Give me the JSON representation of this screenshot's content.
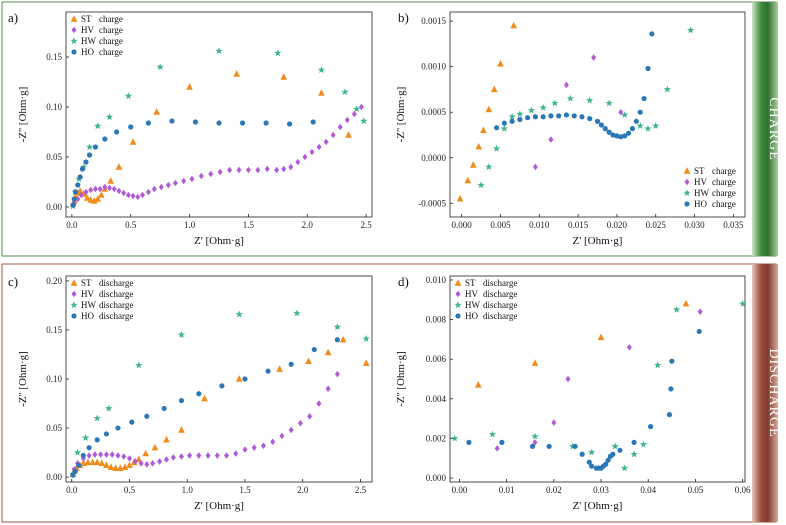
{
  "colors": {
    "ST": "#f28a1c",
    "HV": "#b25ad6",
    "HW": "#3fb48f",
    "HO": "#2b78b8",
    "charge_band": "#3f8a3a",
    "discharge_band": "#9a4c3c"
  },
  "band_labels": {
    "charge": "CHARGE",
    "discharge": "DISCHARGE"
  },
  "chart_data": [
    {
      "panel": "a)",
      "type": "scatter",
      "xlabel": "Z' [Ohm·g]",
      "ylabel": "-Z'' [Ohm·g]",
      "xlim": [
        -0.05,
        2.55
      ],
      "ylim": [
        -0.01,
        0.195
      ],
      "xticks": [
        0.0,
        0.5,
        1.0,
        1.5,
        2.0,
        2.5
      ],
      "xtick_labels": [
        "0.0",
        "0.5",
        "1.0",
        "1.5",
        "2.0",
        "2.5"
      ],
      "yticks": [
        0.0,
        0.05,
        0.1,
        0.15
      ],
      "ytick_labels": [
        "0.00",
        "0.05",
        "0.10",
        "0.15"
      ],
      "legend_position": "top-left",
      "series": [
        {
          "name": "ST charge",
          "label": "ST",
          "suffix": "charge",
          "key": "ST",
          "marker": "triangle",
          "x": [
            0.01,
            0.02,
            0.03,
            0.05,
            0.07,
            0.1,
            0.13,
            0.16,
            0.19,
            0.22,
            0.25,
            0.28,
            0.33,
            0.4,
            0.52,
            0.72,
            1.0,
            1.4,
            1.8,
            2.12,
            2.35
          ],
          "y": [
            0.003,
            0.006,
            0.01,
            0.014,
            0.016,
            0.013,
            0.009,
            0.007,
            0.006,
            0.008,
            0.012,
            0.018,
            0.026,
            0.04,
            0.065,
            0.095,
            0.12,
            0.133,
            0.13,
            0.114,
            0.072
          ]
        },
        {
          "name": "HV charge",
          "label": "HV",
          "suffix": "charge",
          "key": "HV",
          "marker": "diamond",
          "x": [
            0.02,
            0.05,
            0.08,
            0.12,
            0.16,
            0.2,
            0.24,
            0.28,
            0.32,
            0.36,
            0.4,
            0.44,
            0.48,
            0.52,
            0.56,
            0.6,
            0.65,
            0.7,
            0.76,
            0.82,
            0.88,
            0.95,
            1.02,
            1.1,
            1.18,
            1.26,
            1.34,
            1.42,
            1.5,
            1.58,
            1.66,
            1.74,
            1.8,
            1.86,
            1.92,
            1.98,
            2.04,
            2.1,
            2.16,
            2.22,
            2.28,
            2.34,
            2.4,
            2.46
          ],
          "y": [
            0.004,
            0.008,
            0.012,
            0.015,
            0.017,
            0.018,
            0.018,
            0.02,
            0.019,
            0.018,
            0.016,
            0.014,
            0.012,
            0.011,
            0.01,
            0.012,
            0.015,
            0.018,
            0.02,
            0.022,
            0.024,
            0.026,
            0.028,
            0.031,
            0.033,
            0.035,
            0.037,
            0.037,
            0.037,
            0.037,
            0.038,
            0.037,
            0.038,
            0.04,
            0.045,
            0.05,
            0.055,
            0.06,
            0.065,
            0.072,
            0.08,
            0.087,
            0.093,
            0.1
          ]
        },
        {
          "name": "HW charge",
          "label": "HW",
          "suffix": "charge",
          "key": "HW",
          "marker": "star",
          "x": [
            0.01,
            0.03,
            0.06,
            0.1,
            0.15,
            0.22,
            0.32,
            0.48,
            0.75,
            1.25,
            1.75,
            2.12,
            2.32,
            2.42,
            2.48
          ],
          "y": [
            0.001,
            0.015,
            0.028,
            0.04,
            0.06,
            0.081,
            0.09,
            0.111,
            0.14,
            0.156,
            0.154,
            0.137,
            0.115,
            0.098,
            0.086
          ]
        },
        {
          "name": "HO charge",
          "label": "HO",
          "suffix": "charge",
          "key": "HO",
          "marker": "circle",
          "x": [
            0.01,
            0.02,
            0.03,
            0.05,
            0.07,
            0.09,
            0.12,
            0.15,
            0.2,
            0.28,
            0.38,
            0.5,
            0.65,
            0.85,
            1.05,
            1.25,
            1.45,
            1.65,
            1.85,
            2.05
          ],
          "y": [
            0.002,
            0.008,
            0.015,
            0.022,
            0.03,
            0.038,
            0.045,
            0.052,
            0.06,
            0.068,
            0.075,
            0.08,
            0.084,
            0.086,
            0.085,
            0.084,
            0.084,
            0.084,
            0.083,
            0.085
          ]
        }
      ]
    },
    {
      "panel": "b)",
      "type": "scatter",
      "xlabel": "Z' [Ohm·g]",
      "ylabel": "-Z'' [Ohm·g]",
      "xlim": [
        -0.0015,
        0.0365
      ],
      "ylim": [
        -0.00065,
        0.0016
      ],
      "xticks": [
        0.0,
        0.005,
        0.01,
        0.015,
        0.02,
        0.025,
        0.03,
        0.035
      ],
      "xtick_labels": [
        "0.000",
        "0.005",
        "0.010",
        "0.015",
        "0.020",
        "0.025",
        "0.030",
        "0.035"
      ],
      "yticks": [
        -0.0005,
        0.0,
        0.0005,
        0.001,
        0.0015
      ],
      "ytick_labels": [
        "-0.0005",
        "0.0000",
        "0.0005",
        "0.0010",
        "0.0015"
      ],
      "legend_position": "bottom-right",
      "series": [
        {
          "name": "ST charge",
          "label": "ST",
          "suffix": "charge",
          "key": "ST",
          "marker": "triangle",
          "x": [
            -0.0002,
            0.0008,
            0.0015,
            0.0022,
            0.0028,
            0.0035,
            0.0042,
            0.005,
            0.0067
          ],
          "y": [
            -0.00045,
            -0.00025,
            -8e-05,
            0.00012,
            0.0003,
            0.00053,
            0.00075,
            0.00103,
            0.00145
          ]
        },
        {
          "name": "HV charge",
          "label": "HV",
          "suffix": "charge",
          "key": "HV",
          "marker": "diamond",
          "x": [
            0.0095,
            0.0115,
            0.0135,
            0.017,
            0.0205
          ],
          "y": [
            -0.0001,
            0.0002,
            0.0008,
            0.0011,
            0.0005
          ]
        },
        {
          "name": "HW charge",
          "label": "HW",
          "suffix": "charge",
          "key": "HW",
          "marker": "star",
          "x": [
            0.0025,
            0.0035,
            0.0045,
            0.0055,
            0.0065,
            0.0075,
            0.009,
            0.0105,
            0.012,
            0.014,
            0.0165,
            0.019,
            0.021,
            0.023,
            0.024,
            0.025,
            0.0265,
            0.0295
          ],
          "y": [
            -0.0003,
            -0.0001,
            0.0001,
            0.00032,
            0.00045,
            0.00048,
            0.00052,
            0.00055,
            0.0006,
            0.00065,
            0.00063,
            0.0006,
            0.00047,
            0.00035,
            0.00032,
            0.00035,
            0.00075,
            0.0014
          ]
        },
        {
          "name": "HO charge",
          "label": "HO",
          "suffix": "charge",
          "key": "HO",
          "marker": "circle",
          "x": [
            0.0045,
            0.0055,
            0.0065,
            0.0075,
            0.0085,
            0.0095,
            0.0105,
            0.0115,
            0.0125,
            0.0135,
            0.0145,
            0.0155,
            0.0165,
            0.0175,
            0.018,
            0.0185,
            0.019,
            0.0195,
            0.02,
            0.0205,
            0.021,
            0.0215,
            0.022,
            0.0225,
            0.023,
            0.0235,
            0.024,
            0.0245
          ],
          "y": [
            0.00033,
            0.00038,
            0.0004,
            0.00042,
            0.00044,
            0.00045,
            0.00045,
            0.00046,
            0.00046,
            0.00047,
            0.00046,
            0.00045,
            0.00043,
            0.0004,
            0.00036,
            0.00032,
            0.00028,
            0.00025,
            0.00024,
            0.00023,
            0.00024,
            0.00027,
            0.00032,
            0.0004,
            0.0005,
            0.00065,
            0.00098,
            0.00136
          ]
        }
      ]
    },
    {
      "panel": "c)",
      "type": "scatter",
      "xlabel": "Z' [Ohm·g]",
      "ylabel": "-Z'' [Ohm·g]",
      "xlim": [
        -0.05,
        2.6
      ],
      "ylim": [
        -0.005,
        0.205
      ],
      "xticks": [
        0.0,
        0.5,
        1.0,
        1.5,
        2.0,
        2.5
      ],
      "xtick_labels": [
        "0.0",
        "0.5",
        "1.0",
        "1.5",
        "2.0",
        "2.5"
      ],
      "yticks": [
        0.0,
        0.05,
        0.1,
        0.15,
        0.2
      ],
      "ytick_labels": [
        "0.00",
        "0.05",
        "0.10",
        "0.15",
        "0.20"
      ],
      "legend_position": "top-left",
      "series": [
        {
          "name": "ST discharge",
          "label": "ST",
          "suffix": "discharge",
          "key": "ST",
          "marker": "triangle",
          "x": [
            0.01,
            0.02,
            0.04,
            0.07,
            0.1,
            0.14,
            0.18,
            0.22,
            0.26,
            0.3,
            0.34,
            0.38,
            0.42,
            0.46,
            0.5,
            0.54,
            0.58,
            0.64,
            0.72,
            0.82,
            0.95,
            1.15,
            1.45,
            1.8,
            2.05,
            2.22,
            2.35,
            2.55
          ],
          "y": [
            0.003,
            0.006,
            0.009,
            0.012,
            0.014,
            0.015,
            0.015,
            0.015,
            0.014,
            0.012,
            0.01,
            0.009,
            0.009,
            0.01,
            0.012,
            0.015,
            0.018,
            0.024,
            0.03,
            0.038,
            0.048,
            0.08,
            0.1,
            0.11,
            0.118,
            0.127,
            0.14,
            0.116
          ]
        },
        {
          "name": "HV discharge",
          "label": "HV",
          "suffix": "discharge",
          "key": "HV",
          "marker": "diamond",
          "x": [
            0.02,
            0.05,
            0.1,
            0.15,
            0.2,
            0.25,
            0.3,
            0.35,
            0.4,
            0.45,
            0.5,
            0.55,
            0.6,
            0.65,
            0.7,
            0.76,
            0.82,
            0.88,
            0.95,
            1.02,
            1.1,
            1.18,
            1.26,
            1.34,
            1.42,
            1.5,
            1.58,
            1.66,
            1.74,
            1.82,
            1.9,
            1.98,
            2.06,
            2.14,
            2.22,
            2.3
          ],
          "y": [
            0.008,
            0.014,
            0.019,
            0.022,
            0.023,
            0.023,
            0.023,
            0.023,
            0.022,
            0.021,
            0.019,
            0.016,
            0.014,
            0.013,
            0.014,
            0.016,
            0.018,
            0.02,
            0.021,
            0.022,
            0.022,
            0.022,
            0.022,
            0.022,
            0.024,
            0.028,
            0.03,
            0.032,
            0.036,
            0.042,
            0.048,
            0.055,
            0.062,
            0.075,
            0.09,
            0.105
          ]
        },
        {
          "name": "HW discharge",
          "label": "HW",
          "suffix": "discharge",
          "key": "HW",
          "marker": "star",
          "x": [
            0.01,
            0.05,
            0.12,
            0.22,
            0.32,
            0.58,
            0.95,
            1.45,
            1.95,
            2.3,
            2.55
          ],
          "y": [
            0.003,
            0.025,
            0.04,
            0.06,
            0.07,
            0.114,
            0.145,
            0.166,
            0.167,
            0.153,
            0.141
          ]
        },
        {
          "name": "HO discharge",
          "label": "HO",
          "suffix": "discharge",
          "key": "HO",
          "marker": "circle",
          "x": [
            0.01,
            0.03,
            0.06,
            0.1,
            0.15,
            0.22,
            0.3,
            0.4,
            0.52,
            0.65,
            0.8,
            0.95,
            1.1,
            1.3,
            1.5,
            1.7,
            1.9,
            2.1,
            2.3
          ],
          "y": [
            0.002,
            0.006,
            0.012,
            0.022,
            0.03,
            0.038,
            0.044,
            0.05,
            0.056,
            0.062,
            0.07,
            0.078,
            0.085,
            0.093,
            0.1,
            0.108,
            0.115,
            0.13,
            0.14
          ]
        }
      ]
    },
    {
      "panel": "d)",
      "type": "scatter",
      "xlabel": "Z' [Ohm·g]",
      "ylabel": "-Z'' [Ohm·g]",
      "xlim": [
        -0.002,
        0.0605
      ],
      "ylim": [
        -0.0002,
        0.0102
      ],
      "xticks": [
        0.0,
        0.01,
        0.02,
        0.03,
        0.04,
        0.05,
        0.06
      ],
      "xtick_labels": [
        "0.00",
        "0.01",
        "0.02",
        "0.03",
        "0.04",
        "0.05",
        "0.06"
      ],
      "yticks": [
        0.0,
        0.002,
        0.004,
        0.006,
        0.008,
        0.01
      ],
      "ytick_labels": [
        "0.000",
        "0.002",
        "0.004",
        "0.006",
        "0.008",
        "0.010"
      ],
      "legend_position": "top-left",
      "series": [
        {
          "name": "ST discharge",
          "label": "ST",
          "suffix": "discharge",
          "key": "ST",
          "marker": "triangle",
          "x": [
            0.004,
            0.016,
            0.03,
            0.048
          ],
          "y": [
            0.0047,
            0.0058,
            0.0071,
            0.0088
          ]
        },
        {
          "name": "HV discharge",
          "label": "HV",
          "suffix": "discharge",
          "key": "HV",
          "marker": "diamond",
          "x": [
            0.008,
            0.016,
            0.02,
            0.023,
            0.036,
            0.051
          ],
          "y": [
            0.0015,
            0.0018,
            0.0028,
            0.005,
            0.0066,
            0.0084
          ]
        },
        {
          "name": "HW discharge",
          "label": "HW",
          "suffix": "discharge",
          "key": "HW",
          "marker": "star",
          "x": [
            -0.001,
            0.007,
            0.016,
            0.024,
            0.028,
            0.033,
            0.035,
            0.037,
            0.039,
            0.042,
            0.046,
            0.06
          ],
          "y": [
            0.002,
            0.0022,
            0.0021,
            0.0016,
            0.0013,
            0.0016,
            0.0005,
            0.0012,
            0.0017,
            0.0057,
            0.0085,
            0.0088
          ]
        },
        {
          "name": "HO discharge",
          "label": "HO",
          "suffix": "discharge",
          "key": "HO",
          "marker": "circle",
          "x": [
            0.002,
            0.009,
            0.0155,
            0.019,
            0.0245,
            0.026,
            0.0275,
            0.028,
            0.029,
            0.0295,
            0.03,
            0.0305,
            0.031,
            0.0315,
            0.032,
            0.0325,
            0.034,
            0.037,
            0.0405,
            0.0445,
            0.0448,
            0.045,
            0.0508
          ],
          "y": [
            0.0018,
            0.0018,
            0.0016,
            0.0016,
            0.0016,
            0.0012,
            0.0008,
            0.0006,
            0.0005,
            0.0005,
            0.0005,
            0.0006,
            0.0007,
            0.0009,
            0.0011,
            0.0012,
            0.0014,
            0.0018,
            0.0026,
            0.0032,
            0.0045,
            0.0059,
            0.0074
          ]
        }
      ]
    }
  ]
}
